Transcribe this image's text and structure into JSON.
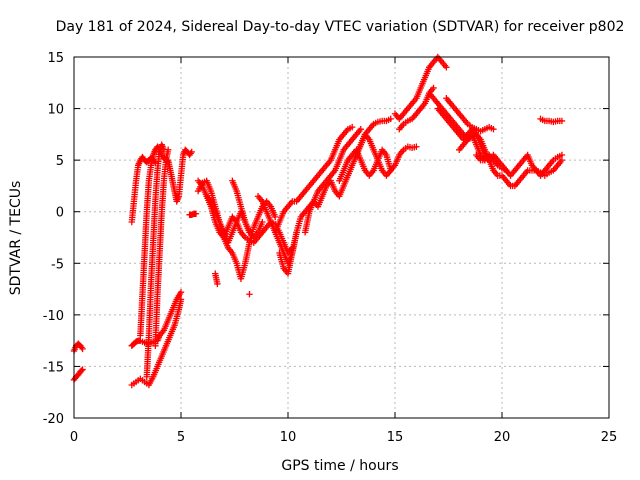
{
  "chart_data": {
    "type": "scatter",
    "title": "Day 181 of 2024, Sidereal Day-to-day VTEC variation (SDTVAR) for receiver p802",
    "xlabel": "GPS time / hours",
    "ylabel": "SDTVAR / TECUs",
    "xlim": [
      0,
      25
    ],
    "ylim": [
      -20,
      15
    ],
    "xticks": [
      0,
      5,
      10,
      15,
      20,
      25
    ],
    "yticks": [
      -20,
      -15,
      -10,
      -5,
      0,
      5,
      10,
      15
    ],
    "grid": true,
    "marker": "plus",
    "color": "#ff0000",
    "series": [
      {
        "name": "s1",
        "x": [
          0.0,
          0.1,
          0.2,
          0.3,
          0.4
        ],
        "y": [
          -13.5,
          -13.0,
          -12.8,
          -13.0,
          -13.3
        ]
      },
      {
        "name": "s2",
        "x": [
          0.0,
          0.1,
          0.2,
          0.3,
          0.4
        ],
        "y": [
          -16.3,
          -16.0,
          -15.8,
          -15.5,
          -15.3
        ]
      },
      {
        "name": "s3",
        "x": [
          2.7,
          2.8,
          2.9,
          3.0,
          3.1,
          3.3,
          3.5,
          3.7,
          3.9,
          4.0,
          4.2,
          4.4,
          4.6,
          4.8,
          5.0
        ],
        "y": [
          -13.0,
          -12.8,
          -12.6,
          -12.5,
          -12.5,
          -12.7,
          -12.8,
          -12.6,
          -12.5,
          -12.0,
          -11.5,
          -10.5,
          -9.5,
          -8.5,
          -7.8
        ]
      },
      {
        "name": "s4",
        "x": [
          2.7,
          2.9,
          3.1,
          3.3,
          3.5,
          3.7,
          3.9,
          4.1,
          4.3,
          4.5,
          4.7,
          4.9,
          5.0
        ],
        "y": [
          -16.8,
          -16.5,
          -16.2,
          -16.5,
          -16.8,
          -16.0,
          -15.0,
          -14.0,
          -13.0,
          -12.0,
          -11.0,
          -9.5,
          -8.5
        ]
      },
      {
        "name": "s5",
        "x": [
          2.7,
          2.8,
          2.9,
          3.0,
          3.1,
          3.2,
          3.3,
          3.4,
          3.5,
          3.6,
          3.7,
          3.8
        ],
        "y": [
          -1.0,
          1.0,
          3.0,
          4.5,
          5.0,
          5.3,
          5.0,
          4.8,
          5.0,
          5.2,
          5.0,
          4.8
        ]
      },
      {
        "name": "s6",
        "x": [
          3.1,
          3.2,
          3.3,
          3.4,
          3.5,
          3.6,
          3.7,
          3.8,
          3.9,
          4.0,
          4.1,
          4.2,
          4.3,
          4.4
        ],
        "y": [
          -12.0,
          -8.0,
          -4.0,
          0.0,
          3.0,
          4.5,
          5.5,
          6.0,
          6.3,
          6.0,
          5.5,
          5.2,
          5.0,
          4.8
        ]
      },
      {
        "name": "s7",
        "x": [
          3.4,
          3.5,
          3.6,
          3.7,
          3.8,
          3.9,
          4.0,
          4.1,
          4.2
        ],
        "y": [
          -16.0,
          -12.0,
          -7.0,
          -3.0,
          1.0,
          4.0,
          6.0,
          6.5,
          6.0
        ]
      },
      {
        "name": "s8",
        "x": [
          3.8,
          3.9,
          4.0,
          4.1,
          4.2,
          4.3,
          4.4
        ],
        "y": [
          -13.0,
          -8.0,
          -4.0,
          0.0,
          3.0,
          5.0,
          6.0
        ]
      },
      {
        "name": "s9",
        "x": [
          4.4,
          4.5,
          4.6,
          4.7,
          4.8,
          4.9,
          5.0,
          5.1,
          5.2,
          5.3,
          5.4,
          5.5
        ],
        "y": [
          5.0,
          4.0,
          3.0,
          2.0,
          1.0,
          1.5,
          3.5,
          5.5,
          6.0,
          5.8,
          5.5,
          5.8
        ]
      },
      {
        "name": "s10",
        "x": [
          5.4,
          5.5,
          5.6,
          5.7
        ],
        "y": [
          -0.3,
          -0.3,
          -0.2,
          -0.2
        ]
      },
      {
        "name": "s11",
        "x": [
          5.8,
          6.0,
          6.2,
          6.4,
          6.6,
          6.8,
          7.0,
          7.2,
          7.4,
          7.6,
          7.8,
          8.0,
          8.2,
          8.4,
          8.6,
          8.8,
          9.0,
          9.2,
          9.4,
          9.6,
          9.8,
          10.0,
          10.2
        ],
        "y": [
          3.0,
          2.5,
          1.5,
          0.5,
          -1.0,
          -2.0,
          -2.5,
          -1.5,
          -0.5,
          -1.0,
          -2.0,
          -2.5,
          -2.8,
          -3.0,
          -2.5,
          -2.0,
          -1.5,
          -1.0,
          -1.2,
          -2.0,
          -3.0,
          -4.0,
          -3.5
        ]
      },
      {
        "name": "s12",
        "x": [
          5.8,
          6.0,
          6.2,
          6.4,
          6.6,
          6.8,
          7.0,
          7.2,
          7.4,
          7.6,
          7.8,
          8.0,
          8.2,
          8.4,
          8.6,
          8.8,
          9.0,
          9.2,
          9.4
        ],
        "y": [
          2.0,
          2.8,
          3.0,
          2.0,
          0.5,
          -1.0,
          -2.5,
          -3.5,
          -4.0,
          -5.0,
          -6.5,
          -5.0,
          -3.0,
          -1.5,
          -0.5,
          0.5,
          1.0,
          0.5,
          -0.5
        ]
      },
      {
        "name": "s13",
        "x": [
          6.2,
          6.4,
          6.6,
          6.8,
          7.0,
          7.2,
          7.4,
          7.6,
          7.8,
          8.0,
          8.2,
          8.4,
          8.6,
          8.8
        ],
        "y": [
          1.5,
          1.0,
          0.0,
          -1.0,
          -2.0,
          -3.0,
          -2.0,
          -1.0,
          0.0,
          -1.0,
          -2.0,
          -2.5,
          -2.0,
          -1.0
        ]
      },
      {
        "name": "s14",
        "x": [
          6.6,
          6.7
        ],
        "y": [
          -6.0,
          -7.0
        ]
      },
      {
        "name": "s15",
        "x": [
          7.4,
          7.6,
          7.8,
          8.0,
          8.2
        ],
        "y": [
          3.0,
          2.0,
          0.5,
          -1.0,
          -2.0
        ]
      },
      {
        "name": "s16",
        "x": [
          8.2
        ],
        "y": [
          -8.0
        ]
      },
      {
        "name": "s17",
        "x": [
          8.6,
          8.8,
          9.0,
          9.2,
          9.4,
          9.6,
          9.8,
          10.0,
          10.2,
          10.4
        ],
        "y": [
          1.5,
          1.0,
          0.0,
          -1.0,
          -2.0,
          -3.0,
          -4.0,
          -5.0,
          -4.0,
          -2.0
        ]
      },
      {
        "name": "s18",
        "x": [
          9.4,
          9.6,
          9.8,
          10.0,
          10.2,
          10.4,
          10.6,
          10.8,
          11.0,
          11.2,
          11.4,
          11.6,
          11.8,
          12.0,
          12.2,
          12.4,
          12.6,
          12.8,
          13.0
        ],
        "y": [
          -2.0,
          -1.0,
          0.0,
          0.5,
          1.0,
          1.0,
          1.5,
          2.0,
          2.5,
          3.0,
          3.5,
          4.0,
          4.5,
          5.0,
          6.0,
          7.0,
          7.5,
          8.0,
          8.2
        ]
      },
      {
        "name": "s19",
        "x": [
          9.6,
          9.8,
          10.0,
          10.2,
          10.4,
          10.6,
          10.8,
          11.0,
          11.2,
          11.4,
          11.6,
          11.8,
          12.0,
          12.2,
          12.4,
          12.6,
          12.8,
          13.0,
          13.2,
          13.4
        ],
        "y": [
          -4.0,
          -5.5,
          -6.0,
          -4.0,
          -2.0,
          -0.5,
          0.0,
          0.5,
          1.0,
          2.0,
          2.5,
          3.0,
          3.5,
          4.0,
          5.0,
          6.0,
          6.5,
          7.0,
          7.5,
          8.0
        ]
      },
      {
        "name": "s20",
        "x": [
          10.8,
          11.0,
          11.2,
          11.4,
          11.6,
          11.8,
          12.0,
          12.2,
          12.4,
          12.6,
          12.8,
          13.0,
          13.2,
          13.4,
          13.6,
          13.8,
          14.0,
          14.2,
          14.4,
          14.6,
          14.8
        ],
        "y": [
          -2.0,
          0.0,
          1.0,
          0.5,
          1.5,
          2.5,
          3.0,
          2.0,
          1.5,
          2.5,
          3.5,
          4.5,
          5.5,
          6.5,
          7.5,
          8.0,
          8.5,
          8.7,
          8.8,
          8.8,
          9.0
        ]
      },
      {
        "name": "s21",
        "x": [
          12.4,
          12.6,
          12.8,
          13.0,
          13.2,
          13.4,
          13.6,
          13.8,
          14.0,
          14.2,
          14.4,
          14.6,
          14.8,
          15.0,
          15.2,
          15.4,
          15.6,
          15.8,
          16.0
        ],
        "y": [
          3.0,
          4.0,
          5.0,
          5.5,
          6.0,
          5.0,
          4.0,
          3.5,
          4.0,
          5.0,
          6.0,
          5.5,
          4.0,
          4.5,
          5.5,
          6.0,
          6.3,
          6.2,
          6.3
        ]
      },
      {
        "name": "s22",
        "x": [
          13.2,
          13.4,
          13.6,
          13.8,
          14.0,
          14.2,
          14.4,
          14.6,
          14.8
        ],
        "y": [
          5.5,
          6.5,
          7.5,
          7.0,
          6.0,
          5.0,
          4.0,
          3.5,
          4.0
        ]
      },
      {
        "name": "s23",
        "x": [
          15.0,
          15.2,
          15.4,
          15.6,
          15.8,
          16.0,
          16.2,
          16.4,
          16.6,
          16.8,
          17.0,
          17.2,
          17.4
        ],
        "y": [
          9.5,
          9.0,
          9.5,
          10.0,
          10.5,
          11.0,
          12.0,
          13.0,
          14.0,
          14.5,
          15.0,
          14.5,
          14.0
        ]
      },
      {
        "name": "s24",
        "x": [
          15.2,
          15.4,
          15.6,
          15.8,
          16.0,
          16.2,
          16.4,
          16.6,
          16.8
        ],
        "y": [
          8.0,
          8.5,
          8.8,
          9.0,
          9.5,
          10.0,
          10.5,
          11.5,
          12.0
        ]
      },
      {
        "name": "s25",
        "x": [
          16.6,
          16.8,
          17.0,
          17.2,
          17.4,
          17.6,
          17.8,
          18.0,
          18.2,
          18.4,
          18.6,
          18.8,
          19.0,
          19.2,
          19.4,
          19.6,
          19.8,
          20.0,
          20.2,
          20.4,
          20.6,
          20.8,
          21.0,
          21.2,
          21.4,
          21.6,
          21.8,
          22.0,
          22.2,
          22.4,
          22.6,
          22.8
        ],
        "y": [
          11.5,
          11.0,
          10.5,
          10.0,
          9.5,
          9.0,
          8.5,
          8.0,
          7.5,
          7.0,
          7.2,
          7.5,
          7.0,
          6.0,
          5.0,
          4.0,
          3.5,
          3.5,
          3.0,
          2.5,
          2.5,
          3.0,
          3.5,
          4.0,
          4.0,
          4.0,
          3.8,
          3.5,
          3.8,
          4.0,
          4.5,
          5.0
        ]
      },
      {
        "name": "s26",
        "x": [
          17.0,
          17.2,
          17.4,
          17.6,
          17.8,
          18.0,
          18.2,
          18.4,
          18.6,
          18.8,
          19.0,
          19.2,
          19.4,
          19.6,
          19.8,
          20.0,
          20.2,
          20.4,
          20.6,
          20.8,
          21.0,
          21.2,
          21.4,
          21.6,
          21.8,
          22.0,
          22.2,
          22.4,
          22.6,
          22.8
        ],
        "y": [
          10.0,
          9.5,
          9.0,
          8.5,
          8.0,
          7.5,
          7.0,
          7.5,
          8.0,
          7.5,
          6.5,
          5.5,
          5.0,
          5.5,
          5.0,
          4.5,
          4.0,
          3.5,
          4.0,
          4.5,
          5.0,
          5.5,
          4.5,
          4.0,
          3.5,
          4.0,
          4.5,
          5.0,
          5.3,
          5.5
        ]
      },
      {
        "name": "s27",
        "x": [
          17.4,
          17.6,
          17.8,
          18.0,
          18.2,
          18.4,
          18.6,
          18.8,
          19.0,
          19.2,
          19.4,
          19.6
        ],
        "y": [
          11.0,
          10.5,
          10.0,
          9.5,
          9.0,
          8.5,
          8.2,
          8.0,
          7.8,
          8.0,
          8.2,
          8.0
        ]
      },
      {
        "name": "s28",
        "x": [
          18.0,
          18.2,
          18.4,
          18.6,
          18.8,
          19.0,
          19.2,
          19.4,
          19.6,
          19.8,
          20.0,
          20.2
        ],
        "y": [
          6.0,
          6.5,
          7.0,
          7.5,
          6.5,
          5.5,
          5.0,
          5.5,
          5.0,
          4.5,
          4.2,
          4.0
        ]
      },
      {
        "name": "s29",
        "x": [
          21.8,
          22.0,
          22.2,
          22.4,
          22.6,
          22.8
        ],
        "y": [
          9.0,
          8.8,
          8.8,
          8.7,
          8.8,
          8.8
        ]
      },
      {
        "name": "s30",
        "x": [
          18.8,
          19.0,
          19.2
        ],
        "y": [
          5.5,
          5.0,
          5.0
        ]
      }
    ]
  }
}
